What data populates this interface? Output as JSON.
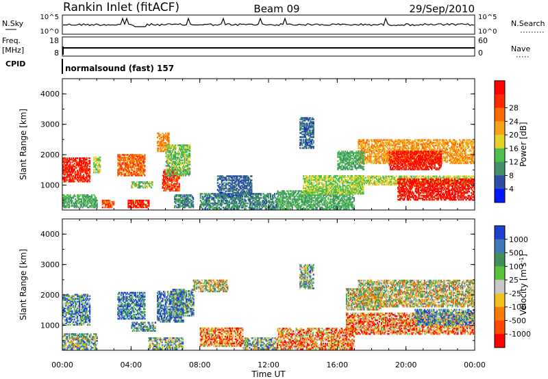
{
  "header": {
    "station": "Rankin Inlet (fitACF)",
    "beam": "Beam 09",
    "date": "29/Sep/2010"
  },
  "noise_panel": {
    "left_label": "N.Sky",
    "right_label": "N.Search",
    "left_ticks": [
      "10^5",
      "10^0"
    ],
    "right_ticks": [
      "10^5",
      "10^0"
    ]
  },
  "freq_panel": {
    "left_label": "Freq.",
    "left_unit": "[MHz]",
    "right_label": "Nave",
    "left_ticks": [
      "18",
      "8"
    ],
    "right_ticks": [
      "60",
      "0"
    ]
  },
  "cpid_panel": {
    "label": "CPID",
    "mode": "normalsound (fast) 157"
  },
  "colors": {
    "power_scale": [
      "#0018ff",
      "#2c4ea6",
      "#43906a",
      "#4cbf4c",
      "#e6d12a",
      "#f5a21a",
      "#ff6a00",
      "#ff2a00",
      "#ff0000"
    ],
    "velocity_scale": [
      "#1f3fcf",
      "#3d79b8",
      "#3f8f5a",
      "#58c43c",
      "#c8c8c8",
      "#f3c021",
      "#f77c0a",
      "#ff4a00",
      "#ff0000"
    ]
  },
  "chart_data": [
    {
      "type": "heatmap",
      "name": "power",
      "xlabel": "Time UT",
      "ylabel": "Slant Range [km]",
      "x_ticks": [
        "00:00",
        "04:00",
        "08:00",
        "12:00",
        "16:00",
        "20:00",
        "00:00"
      ],
      "y_ticks": [
        "1000",
        "2000",
        "3000",
        "4000"
      ],
      "xlim": [
        0,
        24
      ],
      "ylim": [
        180,
        4500
      ],
      "colorbar_label": "Power [dB]",
      "colorbar_ticks": [
        "4",
        "8",
        "12",
        "16",
        "20",
        "24",
        "28"
      ],
      "colorbar_range": [
        0,
        30
      ],
      "regions": [
        {
          "t": [
            0.0,
            1.6
          ],
          "r": [
            1100,
            1900
          ],
          "v": 26
        },
        {
          "t": [
            1.8,
            2.2
          ],
          "r": [
            1400,
            1900
          ],
          "v": 14
        },
        {
          "t": [
            0.0,
            2.0
          ],
          "r": [
            250,
            700
          ],
          "v": 10
        },
        {
          "t": [
            2.3,
            3.0
          ],
          "r": [
            250,
            500
          ],
          "v": 24
        },
        {
          "t": [
            3.2,
            4.8
          ],
          "r": [
            1300,
            2000
          ],
          "v": 22
        },
        {
          "t": [
            3.8,
            5.0
          ],
          "r": [
            250,
            500
          ],
          "v": 26
        },
        {
          "t": [
            4.0,
            5.2
          ],
          "r": [
            900,
            1100
          ],
          "v": 12
        },
        {
          "t": [
            5.5,
            6.2
          ],
          "r": [
            2100,
            2700
          ],
          "v": 20
        },
        {
          "t": [
            5.8,
            6.8
          ],
          "r": [
            800,
            1500
          ],
          "v": 25
        },
        {
          "t": [
            6.0,
            7.4
          ],
          "r": [
            1300,
            2300
          ],
          "v": 12
        },
        {
          "t": [
            6.5,
            7.6
          ],
          "r": [
            250,
            700
          ],
          "v": 8
        },
        {
          "t": [
            8.0,
            12.5
          ],
          "r": [
            200,
            700
          ],
          "v": 8
        },
        {
          "t": [
            9.0,
            11.0
          ],
          "r": [
            600,
            1300
          ],
          "v": 6
        },
        {
          "t": [
            12.5,
            17.0
          ],
          "r": [
            200,
            800
          ],
          "v": 10
        },
        {
          "t": [
            14.0,
            17.5
          ],
          "r": [
            700,
            1300
          ],
          "v": 13
        },
        {
          "t": [
            17.0,
            24.0
          ],
          "r": [
            1000,
            1300
          ],
          "v": 14
        },
        {
          "t": [
            19.5,
            24.0
          ],
          "r": [
            500,
            1200
          ],
          "v": 27
        },
        {
          "t": [
            17.2,
            24.0
          ],
          "r": [
            1700,
            2500
          ],
          "v": 19
        },
        {
          "t": [
            19.0,
            22.0
          ],
          "r": [
            1500,
            2100
          ],
          "v": 27
        },
        {
          "t": [
            16.0,
            17.5
          ],
          "r": [
            1500,
            2100
          ],
          "v": 10
        },
        {
          "t": [
            13.8,
            14.6
          ],
          "r": [
            2200,
            3200
          ],
          "v": 6
        }
      ]
    },
    {
      "type": "heatmap",
      "name": "velocity",
      "xlabel": "Time UT",
      "ylabel": "Slant Range [km]",
      "x_ticks": [
        "00:00",
        "04:00",
        "08:00",
        "12:00",
        "16:00",
        "20:00",
        "00:00"
      ],
      "y_ticks": [
        "1000",
        "2000",
        "3000",
        "4000"
      ],
      "xlim": [
        0,
        24
      ],
      "ylim": [
        180,
        4500
      ],
      "colorbar_label": "Velocity [m s^-1]",
      "colorbar_ticks": [
        "1000",
        "500",
        "100",
        "25",
        "-25",
        "-100",
        "-500",
        "-1000"
      ],
      "regions": [
        {
          "t": [
            0.0,
            1.6
          ],
          "r": [
            1000,
            2000
          ],
          "v": 2
        },
        {
          "t": [
            0.0,
            2.0
          ],
          "r": [
            200,
            700
          ],
          "v": 3
        },
        {
          "t": [
            3.2,
            4.8
          ],
          "r": [
            1200,
            2100
          ],
          "v": 1
        },
        {
          "t": [
            4.0,
            5.4
          ],
          "r": [
            800,
            1100
          ],
          "v": 2
        },
        {
          "t": [
            5.5,
            7.0
          ],
          "r": [
            1100,
            2100
          ],
          "v": 1
        },
        {
          "t": [
            6.4,
            7.6
          ],
          "r": [
            1300,
            2200
          ],
          "v": 2
        },
        {
          "t": [
            7.6,
            9.6
          ],
          "r": [
            2100,
            2500
          ],
          "v": 4
        },
        {
          "t": [
            5.0,
            7.0
          ],
          "r": [
            200,
            600
          ],
          "v": 3
        },
        {
          "t": [
            8.0,
            10.5
          ],
          "r": [
            300,
            900
          ],
          "v": 6
        },
        {
          "t": [
            10.5,
            12.5
          ],
          "r": [
            200,
            600
          ],
          "v": 3
        },
        {
          "t": [
            12.5,
            17.0
          ],
          "r": [
            200,
            900
          ],
          "v": 6
        },
        {
          "t": [
            16.5,
            24.0
          ],
          "r": [
            700,
            1400
          ],
          "v": 6
        },
        {
          "t": [
            17.2,
            24.0
          ],
          "r": [
            1600,
            2500
          ],
          "v": 4
        },
        {
          "t": [
            20.5,
            24.0
          ],
          "r": [
            1000,
            1500
          ],
          "v": 2
        },
        {
          "t": [
            16.5,
            18.5
          ],
          "r": [
            1500,
            2200
          ],
          "v": 4
        },
        {
          "t": [
            13.8,
            14.6
          ],
          "r": [
            2200,
            3000
          ],
          "v": 3
        }
      ]
    }
  ]
}
